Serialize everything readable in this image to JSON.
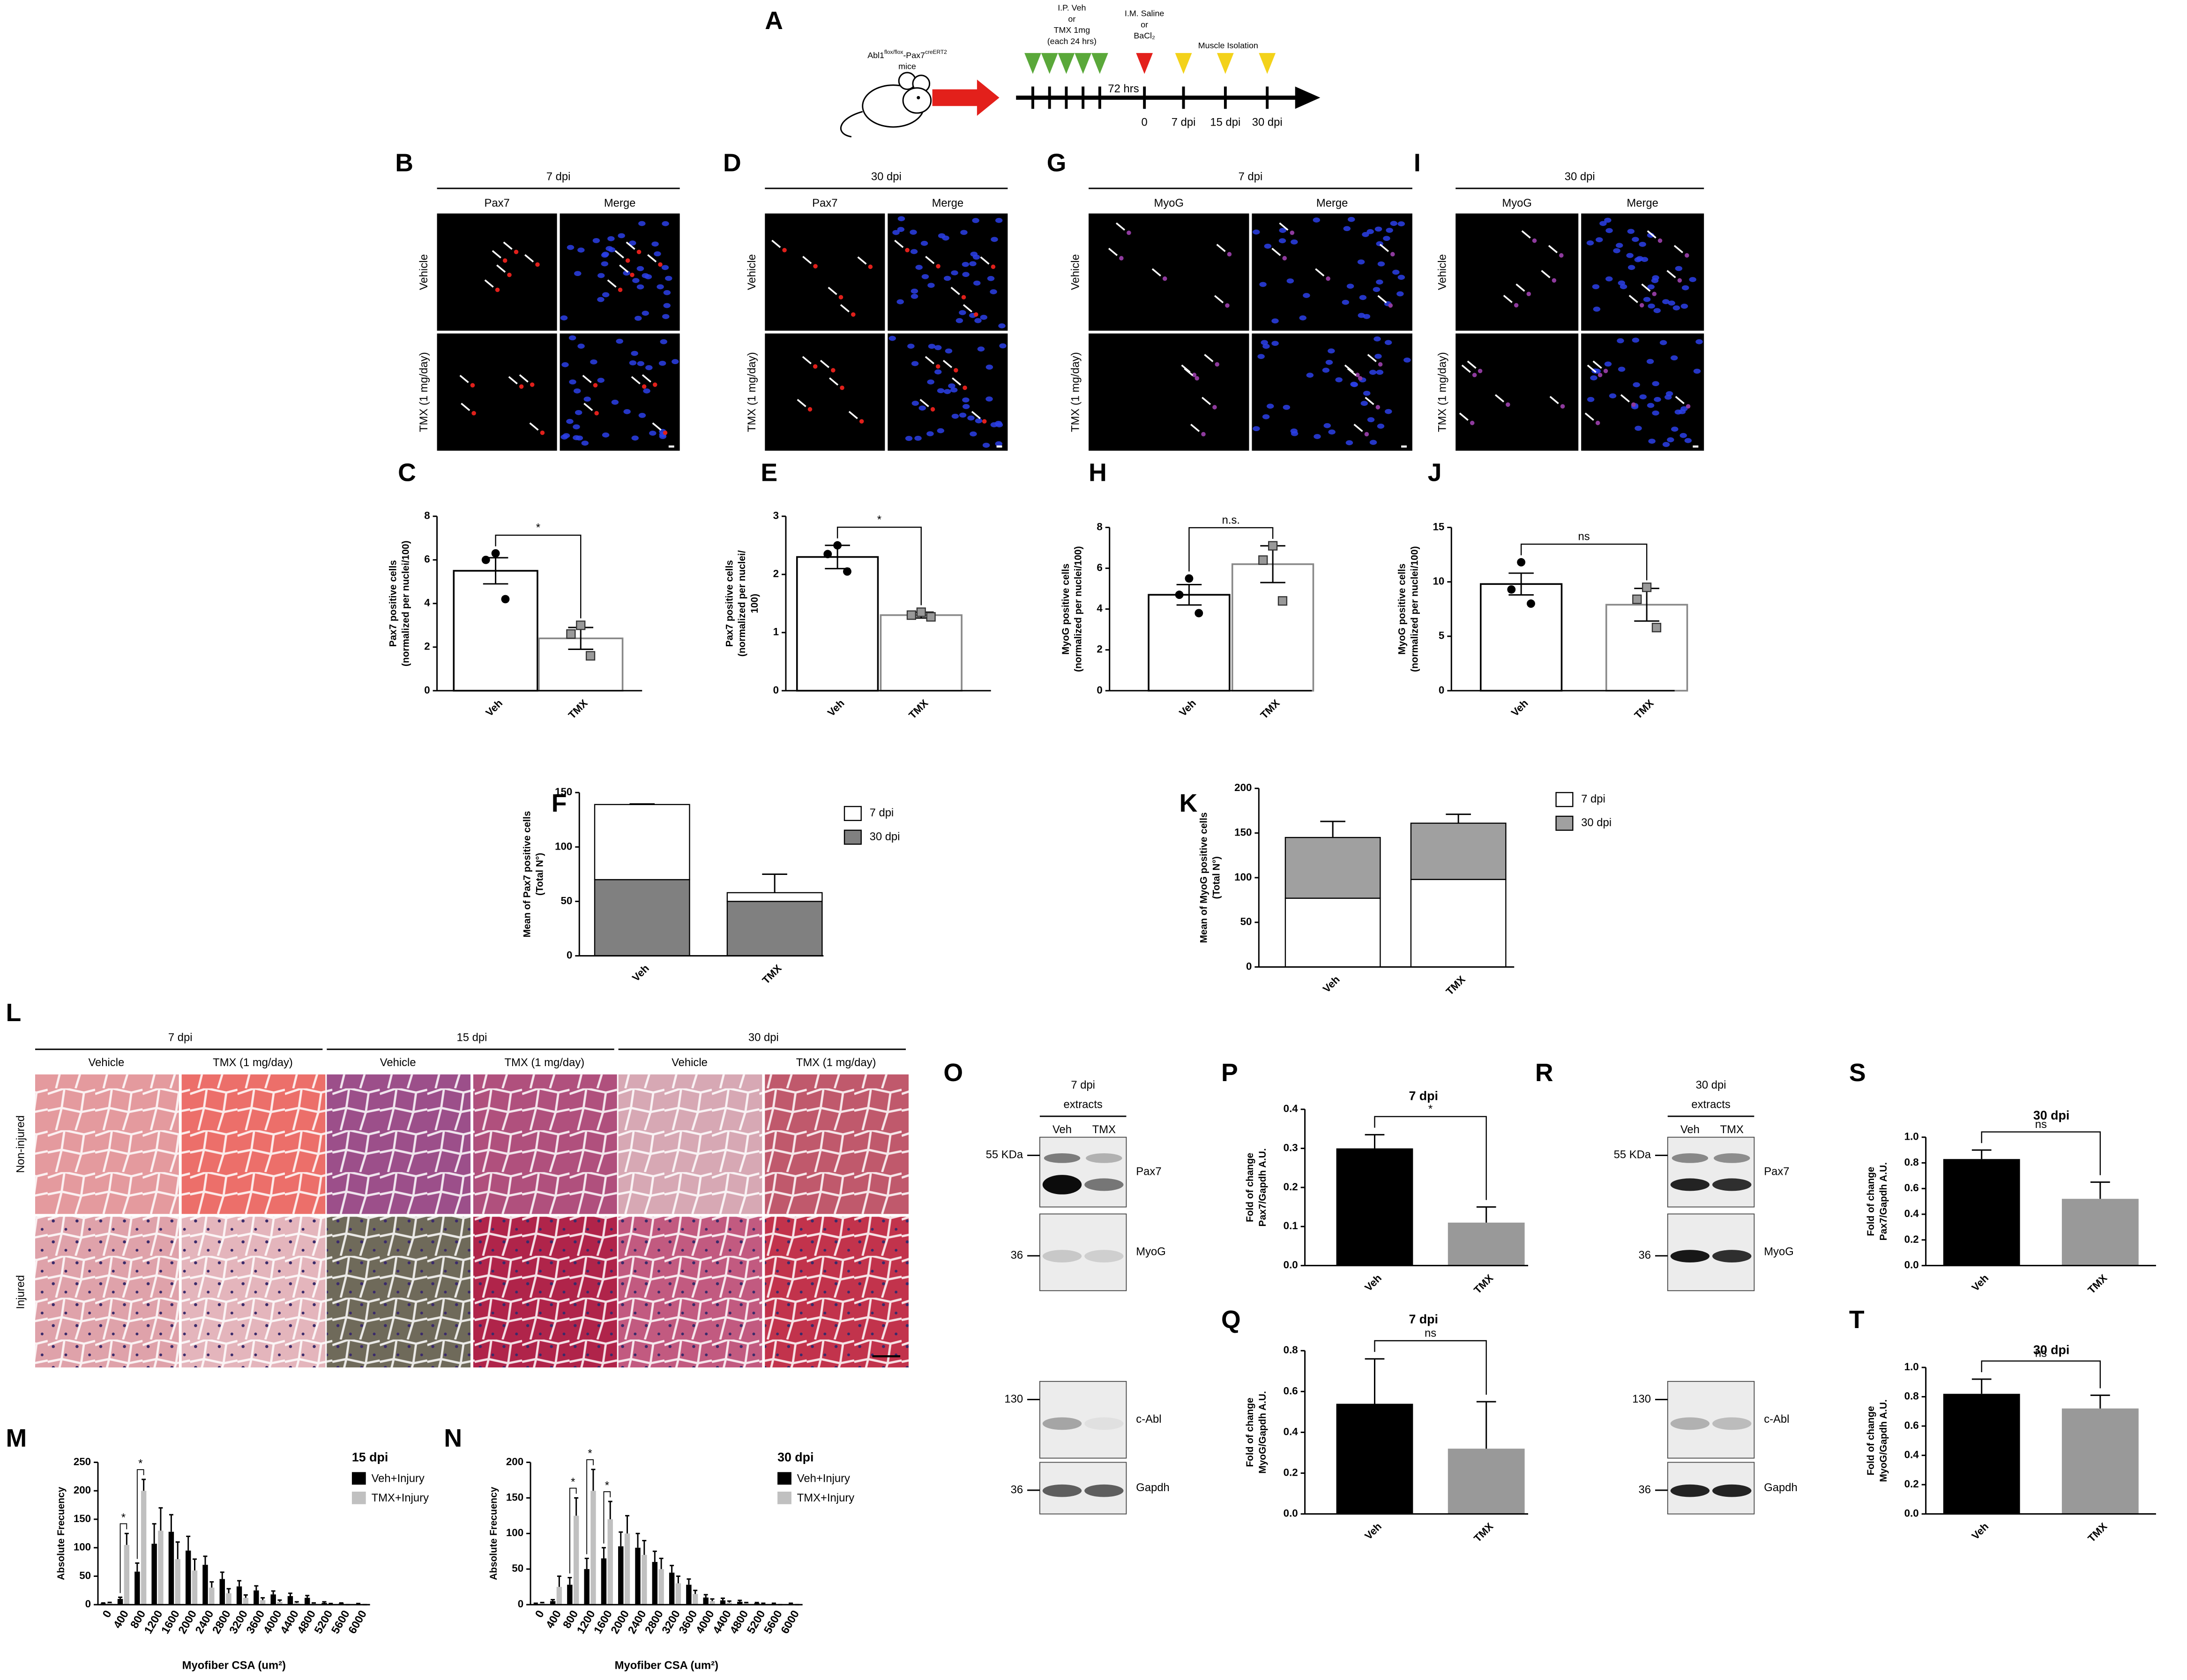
{
  "diagram": {
    "panel": "A",
    "mouse": {
      "gene": "Abl1",
      "gene_sup": "flox/flox",
      "link": "-Pax7",
      "link_sup": "creERT2",
      "line2": "mice"
    },
    "injection": [
      "I.P. Veh",
      "or",
      "TMX 1mg",
      "(each 24 hrs)"
    ],
    "injury": [
      "I.M. Saline",
      "or",
      "BaCl₂"
    ],
    "isolation": "Muscle Isolation",
    "interval": "72 hrs",
    "timepoints": [
      "0",
      "7 dpi",
      "15 dpi",
      "30 dpi"
    ]
  },
  "microscopy": [
    {
      "panel": "B",
      "title": "7 dpi",
      "stain": "Pax7",
      "stain_color": "#e0201b",
      "merge": "Merge",
      "rows": [
        "Vehicle",
        "TMX (1 mg/day)"
      ]
    },
    {
      "panel": "D",
      "title": "30 dpi",
      "stain": "Pax7",
      "stain_color": "#e0201b",
      "merge": "Merge",
      "rows": [
        "Vehicle",
        "TMX (1 mg/day)"
      ]
    },
    {
      "panel": "G",
      "title": "7 dpi",
      "stain": "MyoG",
      "stain_color": "#8e3a9d",
      "merge": "Merge",
      "rows": [
        "Vehicle",
        "TMX (1 mg/day)"
      ]
    },
    {
      "panel": "I",
      "title": "30 dpi",
      "stain": "MyoG",
      "stain_color": "#8e3a9d",
      "merge": "Merge",
      "rows": [
        "Vehicle",
        "TMX (1 mg/day)"
      ]
    }
  ],
  "histology": {
    "panel": "L",
    "groups": [
      {
        "title": "7 dpi",
        "columns": [
          "Vehicle",
          "TMX (1 mg/day)"
        ]
      },
      {
        "title": "15 dpi",
        "columns": [
          "Vehicle",
          "TMX (1 mg/day)"
        ]
      },
      {
        "title": "30 dpi",
        "columns": [
          "Vehicle",
          "TMX (1 mg/day)"
        ]
      }
    ],
    "rows": [
      "Non-injured",
      "Injured"
    ]
  },
  "westerns": [
    {
      "panel": "O",
      "title": [
        "7 dpi",
        "extracts"
      ],
      "lanes": [
        "Veh",
        "TMX"
      ],
      "blots": [
        {
          "marker": "55 KDa",
          "protein": "Pax7"
        },
        {
          "marker": "36",
          "protein": "MyoG"
        },
        {
          "marker": "130",
          "protein": "c-Abl"
        },
        {
          "marker": "36",
          "protein": "Gapdh"
        }
      ]
    },
    {
      "panel": "R",
      "title": [
        "30 dpi",
        "extracts"
      ],
      "lanes": [
        "Veh",
        "TMX"
      ],
      "blots": [
        {
          "marker": "55 KDa",
          "protein": "Pax7"
        },
        {
          "marker": "36",
          "protein": "MyoG"
        },
        {
          "marker": "130",
          "protein": "c-Abl"
        },
        {
          "marker": "36",
          "protein": "Gapdh"
        }
      ]
    }
  ],
  "chart_data": [
    {
      "type": "bar",
      "panel": "C",
      "categories": [
        "Veh",
        "TMX"
      ],
      "values": [
        5.5,
        2.4
      ],
      "errors": [
        0.6,
        0.5
      ],
      "points": [
        [
          6.3,
          6.0,
          4.2
        ],
        [
          3.0,
          2.6,
          1.6
        ]
      ],
      "colors": [
        "#000000",
        "#888888"
      ],
      "bar_style": "outline",
      "point_markers": [
        "circle",
        "square"
      ],
      "error_style": "both",
      "ylim": [
        0,
        8
      ],
      "yticks": [
        0,
        2,
        4,
        6,
        8
      ],
      "ylabel": [
        "Pax7 positive cells",
        "(normalized per nuclei/100)"
      ],
      "significance": "*"
    },
    {
      "type": "bar",
      "panel": "E",
      "categories": [
        "Veh",
        "TMX"
      ],
      "values": [
        2.3,
        1.3
      ],
      "errors": [
        0.2,
        0.05
      ],
      "points": [
        [
          2.5,
          2.35,
          2.05
        ],
        [
          1.35,
          1.3,
          1.27
        ]
      ],
      "colors": [
        "#000000",
        "#888888"
      ],
      "bar_style": "outline",
      "point_markers": [
        "circle",
        "square"
      ],
      "error_style": "both",
      "ylim": [
        0,
        3
      ],
      "yticks": [
        0,
        1,
        2,
        3
      ],
      "ylabel": [
        "Pax7 positive cells",
        "(normalized per nuclei/",
        "100)"
      ],
      "significance": "*"
    },
    {
      "type": "bar",
      "panel": "H",
      "categories": [
        "Veh",
        "TMX"
      ],
      "values": [
        4.7,
        6.2
      ],
      "errors": [
        0.5,
        0.9
      ],
      "points": [
        [
          5.5,
          4.7,
          3.8
        ],
        [
          7.1,
          6.4,
          4.4
        ]
      ],
      "colors": [
        "#000000",
        "#888888"
      ],
      "bar_style": "outline",
      "point_markers": [
        "circle",
        "square"
      ],
      "error_style": "both",
      "ylim": [
        0,
        8
      ],
      "yticks": [
        0,
        2,
        4,
        6,
        8
      ],
      "ylabel": [
        "MyoG positive cells",
        "(normalized per nuclei/100)"
      ],
      "significance": "n.s."
    },
    {
      "type": "bar",
      "panel": "J",
      "categories": [
        "Veh",
        "TMX"
      ],
      "values": [
        9.8,
        7.9
      ],
      "errors": [
        1.0,
        1.5
      ],
      "points": [
        [
          11.8,
          9.3,
          8.0
        ],
        [
          9.5,
          8.4,
          5.8
        ]
      ],
      "colors": [
        "#000000",
        "#888888"
      ],
      "bar_style": "outline",
      "point_markers": [
        "circle",
        "square"
      ],
      "error_style": "both",
      "ylim": [
        0,
        15
      ],
      "yticks": [
        0,
        5,
        10,
        15
      ],
      "ylabel": [
        "MyoG positive cells",
        "(normalized per nuclei/100)"
      ],
      "significance": "ns"
    },
    {
      "type": "bar",
      "panel": "F",
      "stacked": true,
      "categories": [
        "Veh",
        "TMX"
      ],
      "series": [
        {
          "name": "30 dpi",
          "color": "#808080",
          "values": [
            70,
            50
          ],
          "errors": [
            2,
            3
          ]
        },
        {
          "name": "7 dpi",
          "color": "#ffffff",
          "values": [
            69,
            8
          ],
          "errors": [
            0.5,
            17
          ]
        }
      ],
      "legend_order": "reverse",
      "ylim": [
        0,
        150
      ],
      "yticks": [
        0,
        50,
        100,
        150
      ],
      "ylabel": [
        "Mean of Pax7 positive cells",
        "(Total N°)"
      ]
    },
    {
      "type": "bar",
      "panel": "K",
      "stacked": true,
      "categories": [
        "Veh",
        "TMX"
      ],
      "series": [
        {
          "name": "7 dpi",
          "color": "#ffffff",
          "values": [
            77,
            98
          ],
          "errors": [
            5,
            14
          ]
        },
        {
          "name": "30 dpi",
          "color": "#a0a0a0",
          "values": [
            68,
            63
          ],
          "errors": [
            18,
            10
          ]
        }
      ],
      "ylim": [
        0,
        200
      ],
      "yticks": [
        0,
        50,
        100,
        150,
        200
      ],
      "ylabel": [
        "Mean of MyoG positive cells",
        "(Total N°)"
      ]
    },
    {
      "type": "bar",
      "panel": "M",
      "categories": [
        0,
        400,
        800,
        1200,
        1600,
        2000,
        2400,
        2800,
        3200,
        3600,
        4000,
        4400,
        4800,
        5200,
        5600,
        6000
      ],
      "series": [
        {
          "name": "Veh+Injury",
          "color": "#000000",
          "values": [
            2,
            10,
            58,
            107,
            128,
            95,
            70,
            45,
            32,
            25,
            18,
            15,
            12,
            3,
            2,
            1
          ],
          "errors": [
            1,
            3,
            15,
            35,
            30,
            25,
            15,
            12,
            10,
            8,
            6,
            5,
            4,
            2,
            1,
            1
          ]
        },
        {
          "name": "TMX+Injury",
          "color": "#c0c0c0",
          "values": [
            3,
            105,
            200,
            130,
            80,
            60,
            30,
            20,
            12,
            8,
            5,
            3,
            2,
            1,
            0,
            0
          ],
          "errors": [
            1,
            20,
            20,
            40,
            30,
            20,
            10,
            8,
            5,
            4,
            3,
            2,
            1,
            1,
            0,
            0
          ]
        }
      ],
      "legend_title": "15 dpi",
      "ylim": [
        0,
        250
      ],
      "yticks": [
        0,
        50,
        100,
        150,
        200,
        250
      ],
      "ylabel": [
        "Absolute Frecuency"
      ],
      "xlabel": "Myofiber CSA (um²)",
      "annotations": [
        {
          "x": 400,
          "label": "*"
        },
        {
          "x": 800,
          "label": "*"
        }
      ]
    },
    {
      "type": "bar",
      "panel": "N",
      "categories": [
        0,
        400,
        800,
        1200,
        1600,
        2000,
        2400,
        2800,
        3200,
        3600,
        4000,
        4400,
        4800,
        5200,
        5600,
        6000
      ],
      "series": [
        {
          "name": "Veh+Injury",
          "color": "#000000",
          "values": [
            1,
            5,
            28,
            50,
            65,
            82,
            80,
            60,
            45,
            28,
            10,
            6,
            4,
            2,
            1,
            1
          ],
          "errors": [
            1,
            2,
            10,
            15,
            15,
            20,
            20,
            15,
            10,
            8,
            4,
            3,
            2,
            1,
            1,
            1
          ]
        },
        {
          "name": "TMX+Injury",
          "color": "#c0c0c0",
          "values": [
            2,
            25,
            125,
            160,
            120,
            100,
            70,
            50,
            30,
            15,
            5,
            3,
            2,
            1,
            0,
            0
          ],
          "errors": [
            1,
            15,
            25,
            30,
            25,
            25,
            20,
            15,
            10,
            5,
            3,
            2,
            1,
            1,
            0,
            0
          ]
        }
      ],
      "legend_title": "30 dpi",
      "ylim": [
        0,
        200
      ],
      "yticks": [
        0,
        50,
        100,
        150,
        200
      ],
      "ylabel": [
        "Absolute Frecuency"
      ],
      "xlabel": "Myofiber CSA (um²)",
      "annotations": [
        {
          "x": 800,
          "label": "*"
        },
        {
          "x": 1200,
          "label": "*"
        },
        {
          "x": 1600,
          "label": "*"
        }
      ]
    },
    {
      "type": "bar",
      "panel": "P",
      "title": "7 dpi",
      "categories": [
        "Veh",
        "TMX"
      ],
      "values": [
        0.3,
        0.11
      ],
      "errors": [
        0.035,
        0.04
      ],
      "colors": [
        "#000000",
        "#999999"
      ],
      "bar_style": "solid",
      "error_style": "up",
      "ylim": [
        0,
        0.4
      ],
      "yticks": [
        {
          "value": 0,
          "label": "0.0"
        },
        0.1,
        0.2,
        0.3,
        0.4
      ],
      "ylabel": [
        "Fold of change",
        "Pax7/Gapdh A.U."
      ],
      "significance": "*"
    },
    {
      "type": "bar",
      "panel": "Q",
      "title": "7 dpi",
      "categories": [
        "Veh",
        "TMX"
      ],
      "values": [
        0.54,
        0.32
      ],
      "errors": [
        0.22,
        0.23
      ],
      "colors": [
        "#000000",
        "#999999"
      ],
      "bar_style": "solid",
      "error_style": "up",
      "ylim": [
        0,
        0.8
      ],
      "yticks": [
        {
          "value": 0,
          "label": "0.0"
        },
        0.2,
        0.4,
        0.6,
        0.8
      ],
      "ylabel": [
        "Fold of change",
        "MyoG/Gapdh A.U."
      ],
      "significance": "ns"
    },
    {
      "type": "bar",
      "panel": "S",
      "title": "30 dpi",
      "categories": [
        "Veh",
        "TMX"
      ],
      "values": [
        0.83,
        0.52
      ],
      "errors": [
        0.07,
        0.13
      ],
      "colors": [
        "#000000",
        "#999999"
      ],
      "bar_style": "solid",
      "error_style": "up",
      "ylim": [
        0,
        1
      ],
      "yticks": [
        {
          "value": 0,
          "label": "0.0"
        },
        0.2,
        0.4,
        0.6,
        0.8,
        {
          "value": 1,
          "label": "1.0"
        }
      ],
      "ylabel": [
        "Fold of change",
        "Pax7/Gapdh A.U."
      ],
      "significance": "ns"
    },
    {
      "type": "bar",
      "panel": "T",
      "title": "30 dpi",
      "categories": [
        "Veh",
        "TMX"
      ],
      "values": [
        0.82,
        0.72
      ],
      "errors": [
        0.1,
        0.09
      ],
      "colors": [
        "#000000",
        "#999999"
      ],
      "bar_style": "solid",
      "error_style": "up",
      "ylim": [
        0,
        1
      ],
      "yticks": [
        {
          "value": 0,
          "label": "0.0"
        },
        0.2,
        0.4,
        0.6,
        0.8,
        {
          "value": 1,
          "label": "1.0"
        }
      ],
      "ylabel": [
        "Fold of change",
        "MyoG/Gapdh A.U."
      ],
      "significance": "ns"
    }
  ]
}
